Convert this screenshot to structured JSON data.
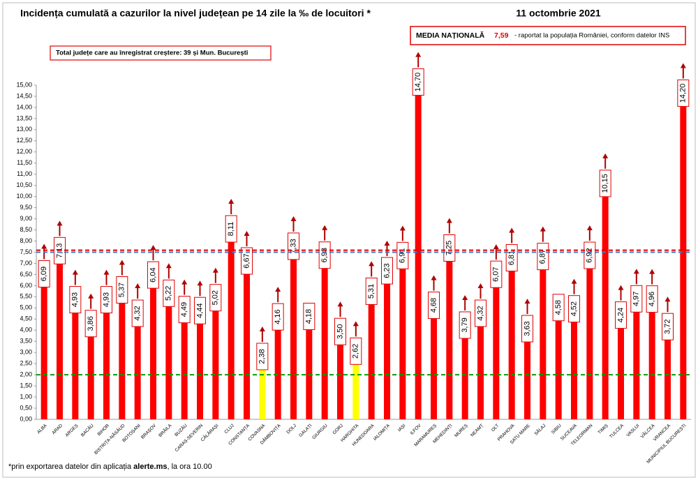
{
  "chart_data": {
    "type": "bar",
    "title": "Incidența cumulată a cazurilor la nivel județean pe 14 zile la ‰ de locuitori *",
    "date": "11 octombrie 2021",
    "national_average": {
      "title": "MEDIA NAȚIONALĂ",
      "value": 7.59,
      "label": "7,59",
      "note": "- raportat la populația României, conform datelor INS",
      "color": "#e00000"
    },
    "increase_note": "Total județe care au înregistrat creștere:  39 și Mun. București",
    "footnote": {
      "text": "*prin exportarea datelor din aplicația ",
      "bold": "alerte.ms",
      "rest": ", la ora 10.00"
    },
    "categories": [
      "ALBA",
      "ARAD",
      "ARGEȘ",
      "BACĂU",
      "BIHOR",
      "BISTRIȚA-NĂSĂUD",
      "BOTOȘANI",
      "BRAȘOV",
      "BRĂILA",
      "BUZĂU",
      "CARAȘ-SEVERIN",
      "CĂLĂRAȘI",
      "CLUJ",
      "CONSTANȚA",
      "COVASNA",
      "DÂMBOVIȚA",
      "DOLJ",
      "GALAȚI",
      "GIURGIU",
      "GORJ",
      "HARGHITA",
      "HUNEDOARA",
      "IALOMIȚA",
      "IAȘI",
      "ILFOV",
      "MARAMUREȘ",
      "MEHEDINȚI",
      "MUREȘ",
      "NEAMȚ",
      "OLT",
      "PRAHOVA",
      "SATU MARE",
      "SĂLAJ",
      "SIBIU",
      "SUCEAVA",
      "TELEORMAN",
      "TIMIȘ",
      "TULCEA",
      "VASLUI",
      "VÂLCEA",
      "VRANCEA",
      "MUNICIPIUL BUCUREȘTI"
    ],
    "values": [
      6.09,
      7.13,
      4.93,
      3.86,
      4.93,
      5.37,
      4.32,
      6.04,
      5.22,
      4.49,
      4.44,
      5.02,
      8.11,
      6.67,
      2.38,
      4.16,
      7.33,
      4.18,
      6.93,
      3.5,
      2.62,
      5.31,
      6.23,
      6.91,
      14.7,
      4.68,
      7.25,
      3.79,
      4.32,
      6.07,
      6.81,
      3.63,
      6.87,
      4.58,
      4.52,
      6.92,
      10.15,
      4.24,
      4.97,
      4.96,
      3.72,
      14.2
    ],
    "value_labels": [
      "6,09",
      "7,13",
      "4,93",
      "3,86",
      "4,93",
      "5,37",
      "4,32",
      "6,04",
      "5,22",
      "4,49",
      "4,44",
      "5,02",
      "8,11",
      "6,67",
      "2,38",
      "4,16",
      "7,33",
      "4,18",
      "6,93",
      "3,50",
      "2,62",
      "5,31",
      "6,23",
      "6,91",
      "14,70",
      "4,68",
      "7,25",
      "3,79",
      "4,32",
      "6,07",
      "6,81",
      "3,63",
      "6,87",
      "4,58",
      "4,52",
      "6,92",
      "10,15",
      "4,24",
      "4,97",
      "4,96",
      "3,72",
      "14,20"
    ],
    "colors": [
      "#ff0000",
      "#ff0000",
      "#ff0000",
      "#ff0000",
      "#ff0000",
      "#ff0000",
      "#ff0000",
      "#ff0000",
      "#ff0000",
      "#ff0000",
      "#ff0000",
      "#ff0000",
      "#ff0000",
      "#ff0000",
      "#ffff00",
      "#ff0000",
      "#ff0000",
      "#ff0000",
      "#ff0000",
      "#ff0000",
      "#ffff00",
      "#ff0000",
      "#ff0000",
      "#ff0000",
      "#ff0000",
      "#ff0000",
      "#ff0000",
      "#ff0000",
      "#ff0000",
      "#ff0000",
      "#ff0000",
      "#ff0000",
      "#ff0000",
      "#ff0000",
      "#ff0000",
      "#ff0000",
      "#ff0000",
      "#ff0000",
      "#ff0000",
      "#ff0000",
      "#ff0000",
      "#ff0000"
    ],
    "increase": [
      true,
      true,
      true,
      true,
      true,
      true,
      true,
      true,
      true,
      true,
      true,
      true,
      true,
      true,
      true,
      true,
      true,
      false,
      true,
      true,
      true,
      true,
      true,
      true,
      true,
      true,
      true,
      true,
      true,
      true,
      true,
      true,
      true,
      false,
      true,
      true,
      true,
      true,
      true,
      true,
      true,
      true
    ],
    "reference_lines": [
      {
        "value": 7.5,
        "color": "#4472c4"
      },
      {
        "value": 2.0,
        "color": "#00a000"
      }
    ],
    "ylim": [
      0,
      15
    ],
    "yticks": [
      {
        "value": 0,
        "label": "0,00"
      },
      {
        "value": 0.5,
        "label": "0,50"
      },
      {
        "value": 1,
        "label": "1,00"
      },
      {
        "value": 1.5,
        "label": "1,50"
      },
      {
        "value": 2,
        "label": "2,00"
      },
      {
        "value": 2.5,
        "label": "2,50"
      },
      {
        "value": 3,
        "label": "3,00"
      },
      {
        "value": 3.5,
        "label": "3,50"
      },
      {
        "value": 4,
        "label": "4,00"
      },
      {
        "value": 4.5,
        "label": "4,50"
      },
      {
        "value": 5,
        "label": "5,00"
      },
      {
        "value": 5.5,
        "label": "5,50"
      },
      {
        "value": 6,
        "label": "6,00"
      },
      {
        "value": 6.5,
        "label": "6,50"
      },
      {
        "value": 7,
        "label": "7,00"
      },
      {
        "value": 7.5,
        "label": "7,50"
      },
      {
        "value": 8,
        "label": "8,00"
      },
      {
        "value": 8.5,
        "label": "8,50"
      },
      {
        "value": 9,
        "label": "9,00"
      },
      {
        "value": 9.5,
        "label": "9,50"
      },
      {
        "value": 10,
        "label": "10,00"
      },
      {
        "value": 10.5,
        "label": "10,50"
      },
      {
        "value": 11,
        "label": "11,00"
      },
      {
        "value": 11.5,
        "label": "11,50"
      },
      {
        "value": 12,
        "label": "12,00"
      },
      {
        "value": 12.5,
        "label": "12,50"
      },
      {
        "value": 13,
        "label": "13,00"
      },
      {
        "value": 13.5,
        "label": "13,50"
      },
      {
        "value": 14,
        "label": "14,00"
      },
      {
        "value": 14.5,
        "label": "14,50"
      },
      {
        "value": 15,
        "label": "15,00"
      }
    ]
  }
}
